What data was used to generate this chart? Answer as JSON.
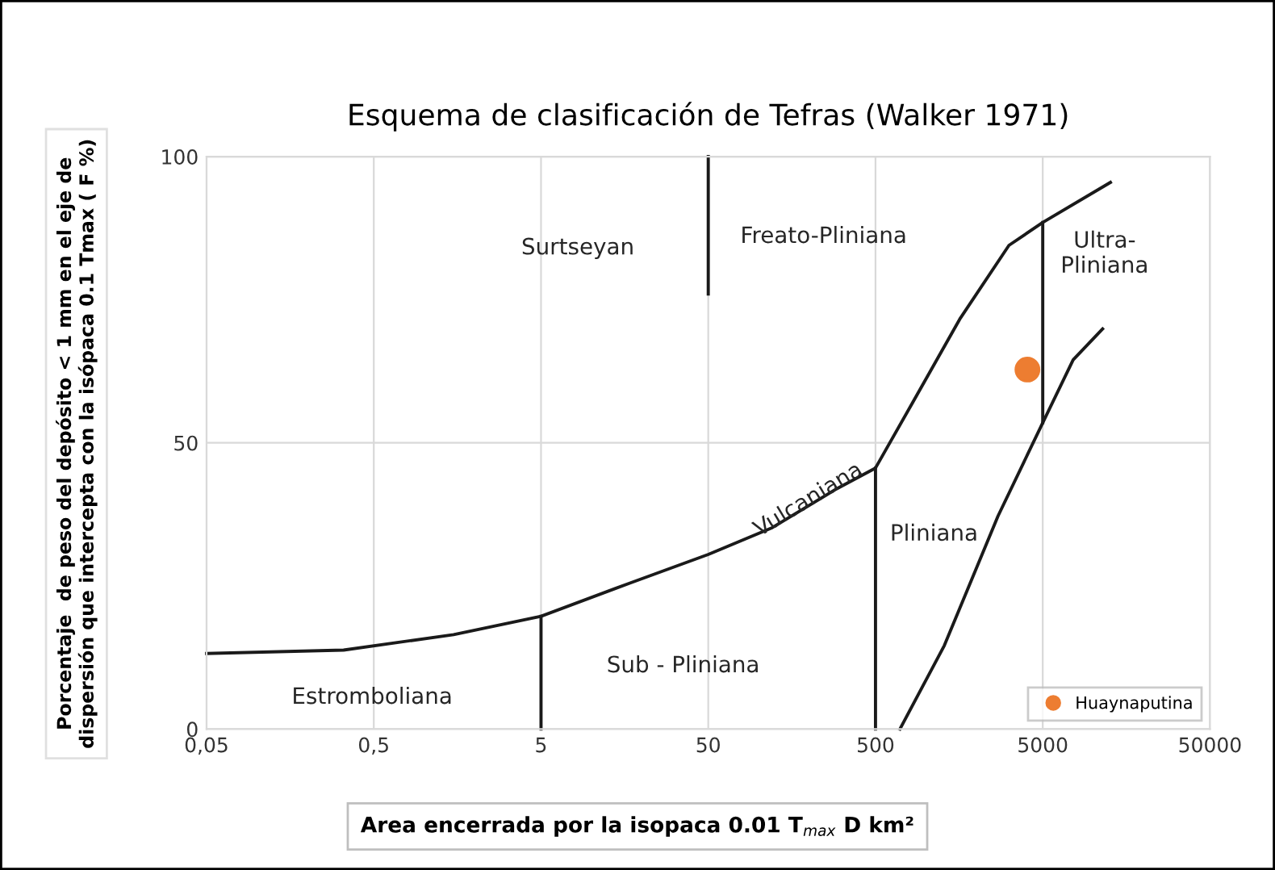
{
  "chart_data": {
    "type": "line",
    "title": "Esquema de clasificación de Tefras (Walker 1971)",
    "xlabel": "Area encerrada por la isopaca 0.01 T$_{max}$ D km²",
    "ylabel": "Porcentaje  de peso del depósito < 1 mm en el eje de\ndispersión que intercepta con la isópaca 0.1 Tmax ( F %)",
    "log": "x",
    "xlim": [
      0.05,
      50000
    ],
    "ylim": [
      0,
      100
    ],
    "xticks": [
      {
        "value": 0.05,
        "label": "0,05"
      },
      {
        "value": 0.5,
        "label": "0,5"
      },
      5,
      50,
      500,
      5000,
      50000
    ],
    "yticks": [
      0,
      50,
      100
    ],
    "grid": true,
    "legend": "bottom right",
    "line_style": "solid",
    "marker": "none",
    "series": [
      {
        "color": "#1a1a1a",
        "x": [
          0.05,
          0.33,
          1.5,
          5,
          17,
          50,
          121,
          294,
          500,
          829,
          1610,
          3140,
          5000,
          12700
        ],
        "values": [
          13.2,
          13.8,
          16.5,
          19.7,
          25.5,
          30.5,
          35.2,
          42,
          45.6,
          56.9,
          71.8,
          84.5,
          88.5,
          95.5
        ]
      },
      {
        "color": "#1a1a1a",
        "x": [
          5,
          5
        ],
        "values": [
          0,
          19.7
        ]
      },
      {
        "color": "#1a1a1a",
        "x": [
          500,
          500
        ],
        "values": [
          0,
          45.6
        ]
      },
      {
        "color": "#1a1a1a",
        "x": [
          50,
          50
        ],
        "values": [
          100,
          76
        ]
      },
      {
        "color": "#1a1a1a",
        "x": [
          5000,
          5000
        ],
        "values": [
          88.5,
          53.5
        ]
      },
      {
        "color": "#1a1a1a",
        "x": [
          700,
          1290,
          2700,
          5000,
          7600,
          11400
        ],
        "values": [
          0,
          14.6,
          37.2,
          53.5,
          64.5,
          69.9
        ]
      },
      {
        "type": "scatter",
        "name": "Huaynaputina",
        "color": "#ed7d31",
        "marker": "circle",
        "x": [
          4050
        ],
        "values": [
          62.8
        ]
      }
    ],
    "annotations": [
      "Surtseyan",
      "Freato-Pliniana",
      "Ultra-\nPliniana",
      "Vulcaniana",
      "Pliniana",
      "Sub - Pliniana",
      "Estromboliana"
    ]
  }
}
